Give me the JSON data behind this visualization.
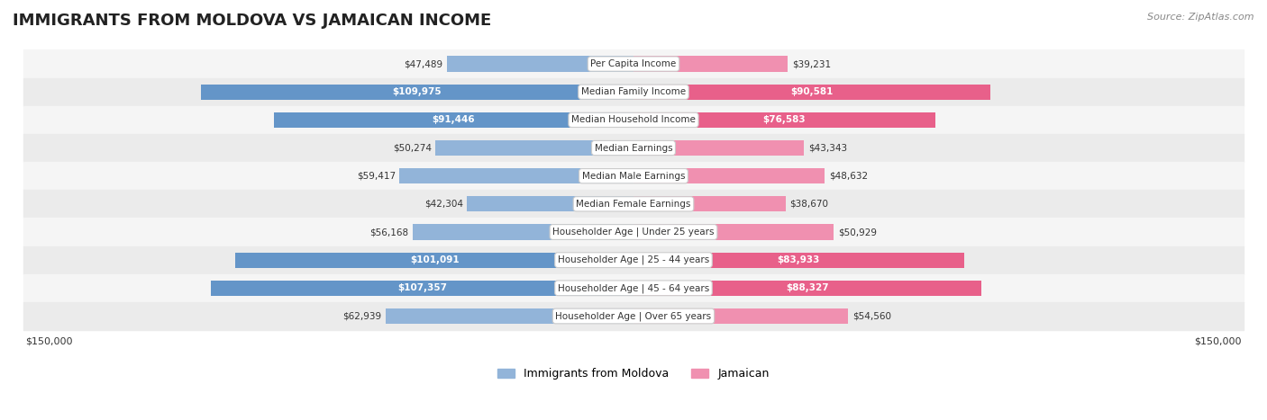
{
  "title": "IMMIGRANTS FROM MOLDOVA VS JAMAICAN INCOME",
  "source": "Source: ZipAtlas.com",
  "categories": [
    "Per Capita Income",
    "Median Family Income",
    "Median Household Income",
    "Median Earnings",
    "Median Male Earnings",
    "Median Female Earnings",
    "Householder Age | Under 25 years",
    "Householder Age | 25 - 44 years",
    "Householder Age | 45 - 64 years",
    "Householder Age | Over 65 years"
  ],
  "moldova_values": [
    47489,
    109975,
    91446,
    50274,
    59417,
    42304,
    56168,
    101091,
    107357,
    62939
  ],
  "jamaican_values": [
    39231,
    90581,
    76583,
    43343,
    48632,
    38670,
    50929,
    83933,
    88327,
    54560
  ],
  "moldova_labels": [
    "$47,489",
    "$109,975",
    "$91,446",
    "$50,274",
    "$59,417",
    "$42,304",
    "$56,168",
    "$101,091",
    "$107,357",
    "$62,939"
  ],
  "jamaican_labels": [
    "$39,231",
    "$90,581",
    "$76,583",
    "$43,343",
    "$48,632",
    "$38,670",
    "$50,929",
    "$83,933",
    "$88,327",
    "$54,560"
  ],
  "max_value": 150000,
  "moldova_color": "#92b4d9",
  "moldova_color_dark": "#6495c8",
  "jamaican_color": "#f090b0",
  "jamaican_color_dark": "#e8608a",
  "label_bg_color": "#ffffff",
  "row_bg_color": "#f0f0f0",
  "row_bg_alt": "#e8e8e8",
  "moldova_threshold": 80000,
  "jamaican_threshold": 70000,
  "xlabel_left": "$150,000",
  "xlabel_right": "$150,000",
  "legend_moldova": "Immigrants from Moldova",
  "legend_jamaican": "Jamaican"
}
